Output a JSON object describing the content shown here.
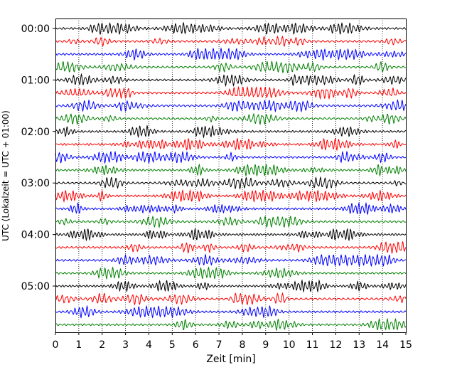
{
  "chart_data": {
    "type": "line",
    "subtype": "seismic-dayplot",
    "xlabel": "Zeit  [min]",
    "ylabel": "UTC (Lokalzeit = UTC + 01:00)",
    "xlim": [
      0,
      15
    ],
    "x_ticks": [
      "0",
      "1",
      "2",
      "3",
      "4",
      "5",
      "6",
      "7",
      "8",
      "9",
      "10",
      "11",
      "12",
      "13",
      "14",
      "15"
    ],
    "y_ticks": [
      "00:00",
      "01:00",
      "02:00",
      "03:00",
      "04:00",
      "05:00"
    ],
    "traces_per_hour": 4,
    "trace_count": 24,
    "trace_colors": [
      "#000000",
      "#ff0000",
      "#0000ff",
      "#008000"
    ],
    "grid": "vertical dotted at each minute"
  }
}
